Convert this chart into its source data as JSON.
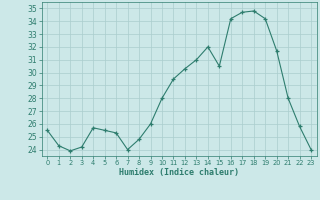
{
  "x": [
    0,
    1,
    2,
    3,
    4,
    5,
    6,
    7,
    8,
    9,
    10,
    11,
    12,
    13,
    14,
    15,
    16,
    17,
    18,
    19,
    20,
    21,
    22,
    23
  ],
  "y": [
    25.5,
    24.3,
    23.9,
    24.2,
    25.7,
    25.5,
    25.3,
    24.0,
    24.8,
    26.0,
    28.0,
    29.5,
    30.3,
    31.0,
    32.0,
    30.5,
    34.2,
    34.7,
    34.8,
    34.2,
    31.7,
    28.0,
    25.8,
    24.0
  ],
  "line_color": "#2e7d6e",
  "marker": "+",
  "bg_color": "#cce8e8",
  "grid_color": "#aacece",
  "xlabel": "Humidex (Indice chaleur)",
  "ylim": [
    23.5,
    35.5
  ],
  "xlim": [
    -0.5,
    23.5
  ],
  "yticks": [
    24,
    25,
    26,
    27,
    28,
    29,
    30,
    31,
    32,
    33,
    34,
    35
  ],
  "xticks": [
    0,
    1,
    2,
    3,
    4,
    5,
    6,
    7,
    8,
    9,
    10,
    11,
    12,
    13,
    14,
    15,
    16,
    17,
    18,
    19,
    20,
    21,
    22,
    23
  ]
}
